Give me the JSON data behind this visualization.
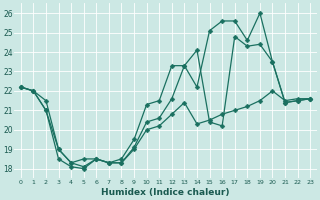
{
  "xlabel": "Humidex (Indice chaleur)",
  "bg_color": "#cce8e4",
  "grid_color": "#ffffff",
  "line_color": "#1a7060",
  "xlim": [
    -0.5,
    23.5
  ],
  "ylim": [
    17.5,
    26.5
  ],
  "yticks": [
    18,
    19,
    20,
    21,
    22,
    23,
    24,
    25,
    26
  ],
  "xticks": [
    0,
    1,
    2,
    3,
    4,
    5,
    6,
    7,
    8,
    9,
    10,
    11,
    12,
    13,
    14,
    15,
    16,
    17,
    18,
    19,
    20,
    21,
    22,
    23
  ],
  "line1_x": [
    0,
    1,
    2,
    3,
    4,
    5,
    6,
    7,
    8,
    9,
    10,
    11,
    12,
    13,
    14,
    15,
    16,
    17,
    18,
    19,
    20,
    21,
    22,
    23
  ],
  "line1_y": [
    22.2,
    22.0,
    21.5,
    19.0,
    18.3,
    18.1,
    18.5,
    18.3,
    18.3,
    19.1,
    20.4,
    20.6,
    21.6,
    23.3,
    24.1,
    20.4,
    20.2,
    24.8,
    24.3,
    24.4,
    23.5,
    21.4,
    21.5,
    21.6
  ],
  "line2_x": [
    0,
    1,
    2,
    3,
    4,
    5,
    6,
    7,
    8,
    9,
    10,
    11,
    12,
    13,
    14,
    15,
    16,
    17,
    18,
    19,
    20,
    21,
    22,
    23
  ],
  "line2_y": [
    22.2,
    22.0,
    21.0,
    19.0,
    18.3,
    18.5,
    18.5,
    18.3,
    18.5,
    19.5,
    21.3,
    21.5,
    23.3,
    23.3,
    22.2,
    25.1,
    25.6,
    25.6,
    24.6,
    26.0,
    23.5,
    21.4,
    21.5,
    21.6
  ],
  "line3_x": [
    0,
    1,
    2,
    3,
    4,
    5,
    6,
    7,
    8,
    9,
    10,
    11,
    12,
    13,
    14,
    15,
    16,
    17,
    18,
    19,
    20,
    21,
    22,
    23
  ],
  "line3_y": [
    22.2,
    22.0,
    21.0,
    18.5,
    18.1,
    18.0,
    18.5,
    18.3,
    18.3,
    19.0,
    20.0,
    20.2,
    20.8,
    21.4,
    20.3,
    20.5,
    20.8,
    21.0,
    21.2,
    21.5,
    22.0,
    21.5,
    21.6,
    21.6
  ]
}
